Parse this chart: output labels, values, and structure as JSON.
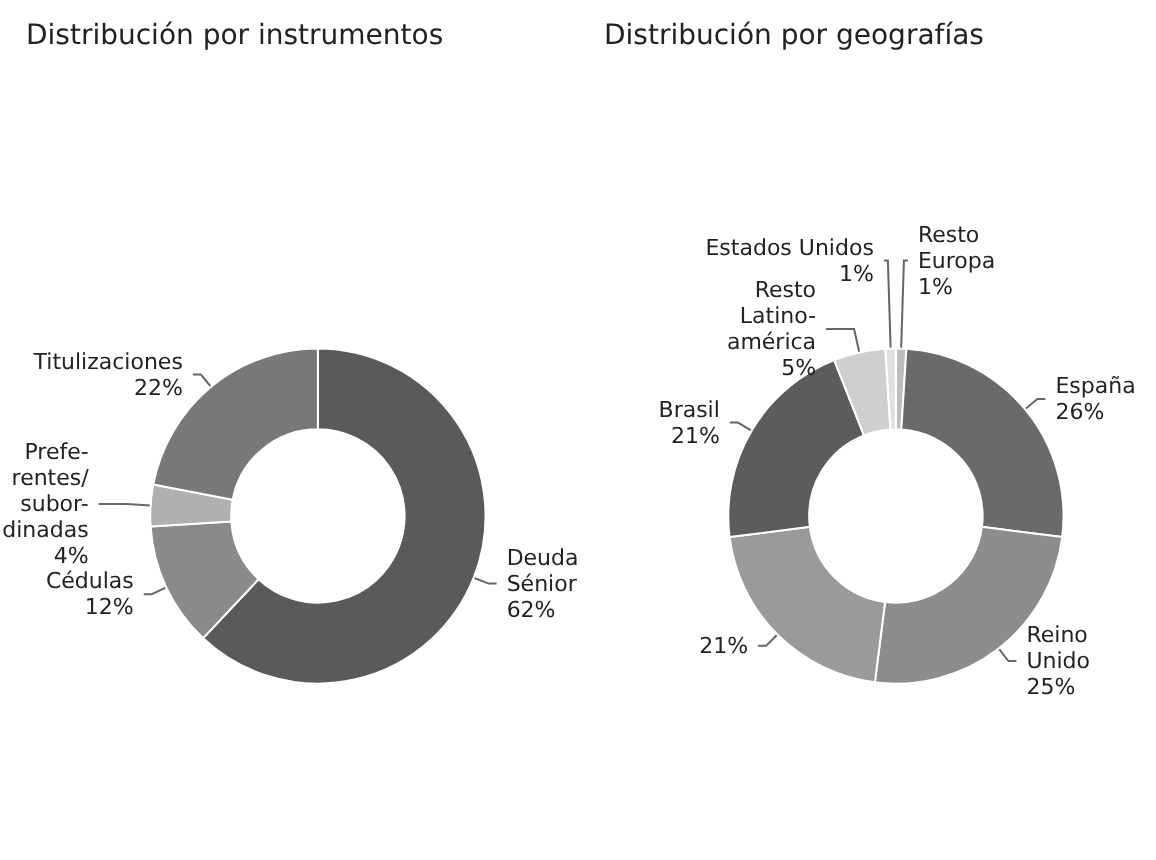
{
  "chart_data": [
    {
      "type": "donut",
      "title": "Distribución por instrumentos",
      "categories": [
        "Deuda\nSénior",
        "Cédulas",
        "Prefe-\nrentes/\nsubor-\ndinadas",
        "Titulizaciones"
      ],
      "values": [
        62,
        12,
        4,
        22
      ],
      "value_labels": [
        "62%",
        "12%",
        "4%",
        "22%"
      ],
      "colors": [
        "#5a5a5a",
        "#8a8a8a",
        "#b0b0b0",
        "#787878"
      ],
      "legend": false
    },
    {
      "type": "donut",
      "title": "Distribución por geografías",
      "categories": [
        "Resto\nEuropa",
        "España",
        "Reino\nUnido",
        null,
        "Brasil",
        "Resto\nLatino-\namérica",
        "Estados Unidos"
      ],
      "values": [
        1,
        26,
        25,
        21,
        21,
        5,
        1
      ],
      "value_labels": [
        "1%",
        "26%",
        "25%",
        "21%",
        "21%",
        "5%",
        "1%"
      ],
      "colors": [
        "#bdbdbd",
        "#6a6a6a",
        "#8c8c8c",
        "#9a9a9a",
        "#5c5c5c",
        "#cfcfcf",
        "#e0e0e0"
      ],
      "legend": false
    }
  ]
}
